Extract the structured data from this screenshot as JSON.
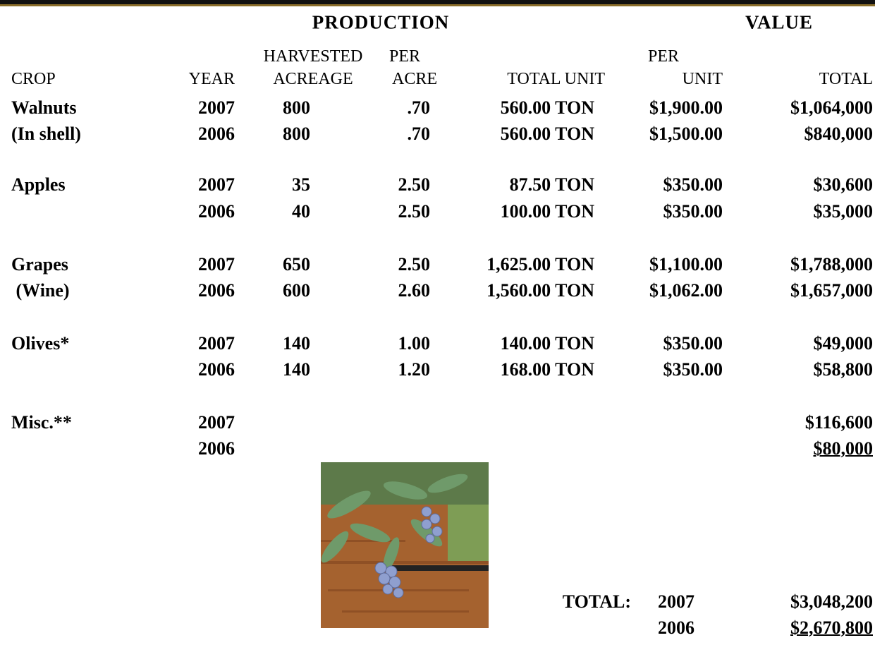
{
  "header": {
    "production": "PRODUCTION",
    "value": "VALUE"
  },
  "columns": [
    {
      "label": "CROP"
    },
    {
      "label": "YEAR"
    },
    {
      "top": "HARVESTED",
      "label": "ACREAGE"
    },
    {
      "top": "PER",
      "label": "ACRE"
    },
    {
      "label": "TOTAL UNIT"
    },
    {
      "top": "PER",
      "label": "UNIT"
    },
    {
      "label": "TOTAL"
    }
  ],
  "rows": [
    {
      "crop": "Walnuts",
      "year": "2007",
      "acreage": "800",
      "per_acre": ".70",
      "total_unit": "560.00 TON",
      "per_unit": "$1,900.00",
      "total": "$1,064,000"
    },
    {
      "crop": "(In shell)",
      "year": "2006",
      "acreage": "800",
      "per_acre": ".70",
      "total_unit": "560.00 TON",
      "per_unit": "$1,500.00",
      "total": "$840,000"
    },
    {
      "crop": "Apples",
      "year": "2007",
      "acreage": "35",
      "per_acre": "2.50",
      "total_unit": "87.50 TON",
      "per_unit": "$350.00",
      "total": "$30,600"
    },
    {
      "year": "2006",
      "acreage": "40",
      "per_acre": "2.50",
      "total_unit": "100.00 TON",
      "per_unit": "$350.00",
      "total": "$35,000"
    },
    {
      "crop": "Grapes",
      "year": "2007",
      "acreage": "650",
      "per_acre": "2.50",
      "total_unit": "1,625.00 TON",
      "per_unit": "$1,100.00",
      "total": "$1,788,000"
    },
    {
      "crop": " (Wine)",
      "year": "2006",
      "acreage": "600",
      "per_acre": "2.60",
      "total_unit": "1,560.00 TON",
      "per_unit": "$1,062.00",
      "total": "$1,657,000"
    },
    {
      "crop": "Olives*",
      "year": "2007",
      "acreage": "140",
      "per_acre": "1.00",
      "total_unit": "140.00 TON",
      "per_unit": "$350.00",
      "total": "$49,000"
    },
    {
      "year": "2006",
      "acreage": "140",
      "per_acre": "1.20",
      "total_unit": "168.00 TON",
      "per_unit": "$350.00",
      "total": "$58,800"
    },
    {
      "crop": "Misc.**",
      "year": "2007",
      "total": "$116,600"
    },
    {
      "year": "2006",
      "total": "$80,000"
    }
  ],
  "totals": {
    "label": "TOTAL:",
    "rows": [
      {
        "year": "2007",
        "total": "$3,048,200"
      },
      {
        "year": "2006",
        "total": "$2,670,800"
      }
    ]
  }
}
